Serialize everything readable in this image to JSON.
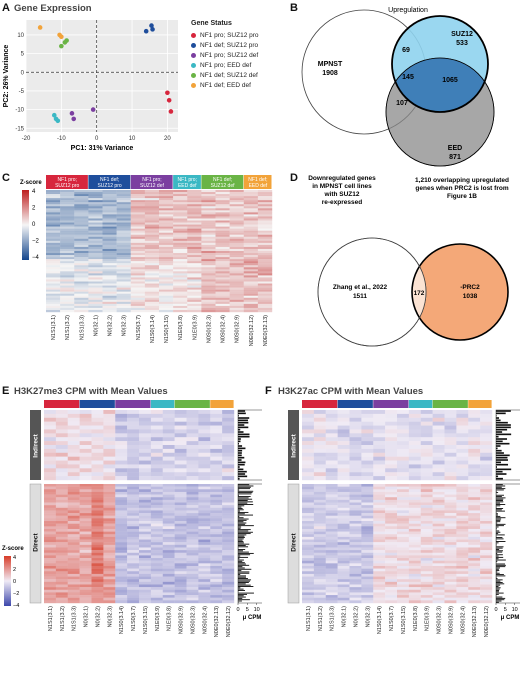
{
  "panels": {
    "A": {
      "label": "A",
      "title": "Gene Expression"
    },
    "B": {
      "label": "B"
    },
    "C": {
      "label": "C"
    },
    "D": {
      "label": "D"
    },
    "E": {
      "label": "E",
      "title": "H3K27me3 CPM with Mean Values"
    },
    "F": {
      "label": "F",
      "title": "H3K27ac CPM with Mean Values"
    }
  },
  "legend": {
    "title": "Gene Status",
    "items": [
      {
        "label": "NF1 pro; SUZ12 pro",
        "color": "#d7263d"
      },
      {
        "label": "NF1 def; SUZ12 pro",
        "color": "#1f4e9c"
      },
      {
        "label": "NF1 pro; SUZ12 def",
        "color": "#7b3fa0"
      },
      {
        "label": "NF1 pro; EED def",
        "color": "#3bb8c4"
      },
      {
        "label": "NF1 def; SUZ12 def",
        "color": "#6ab445"
      },
      {
        "label": "NF1 def; EED def",
        "color": "#f2a33a"
      }
    ]
  },
  "chart_data": [
    {
      "type": "scatter",
      "panel": "A",
      "title": "Gene Expression",
      "xlabel": "PC1: 31% Variance",
      "ylabel": "PC2: 26% Variance",
      "xlim": [
        -20,
        23
      ],
      "ylim": [
        -16,
        14
      ],
      "xticks": [
        -20,
        -10,
        0,
        10,
        20
      ],
      "yticks": [
        -15,
        -10,
        -5,
        0,
        5,
        10
      ],
      "series": [
        {
          "name": "NF1 pro; SUZ12 pro",
          "x": [
            20,
            20.5,
            21
          ],
          "y": [
            -5.5,
            -7.5,
            -10.5
          ]
        },
        {
          "name": "NF1 def; SUZ12 pro",
          "x": [
            14,
            15.5,
            15.8
          ],
          "y": [
            11,
            12.5,
            11.5
          ]
        },
        {
          "name": "NF1 pro; SUZ12 def",
          "x": [
            -7,
            -6.5,
            -1
          ],
          "y": [
            -11,
            -12.5,
            -10
          ]
        },
        {
          "name": "NF1 pro; EED def",
          "x": [
            -12,
            -11.5,
            -11
          ],
          "y": [
            -11.5,
            -12.5,
            -13
          ]
        },
        {
          "name": "NF1 def; SUZ12 def",
          "x": [
            -10,
            -9,
            -8.5
          ],
          "y": [
            7,
            8,
            8.5
          ]
        },
        {
          "name": "NF1 def; EED def",
          "x": [
            -16,
            -10.5,
            -10
          ],
          "y": [
            12,
            10,
            9.5
          ]
        }
      ]
    },
    {
      "type": "venn",
      "panel": "B",
      "title": "Upregulation",
      "sets": [
        {
          "name": "MPNST",
          "count": "1908"
        },
        {
          "name": "SUZ12",
          "count": "533"
        },
        {
          "name": "EED",
          "count": "871"
        }
      ],
      "overlaps": {
        "mpnst_suz12": "69",
        "all_three": "145",
        "suz12_eed": "1065",
        "mpnst_eed": "107"
      }
    },
    {
      "type": "heatmap",
      "panel": "C",
      "scale_title": "Z-score",
      "scale_ticks": [
        "4",
        "2",
        "0",
        "−2",
        "−4"
      ],
      "groups": [
        "NF1 pro; SUZ12 pro",
        "NF1 def; SUZ12 pro",
        "NF1 pro; SUZ12 def",
        "NF1 pro; EED def",
        "NF1 def; SUZ12 def",
        "NF1 def; EED def"
      ],
      "columns": [
        "N1S1(3.1)",
        "N1S1(3.2)",
        "N1S1(3.3)",
        "N0(32.1)",
        "N0(32.2)",
        "N0(32.3)",
        "N1S0(3.7)",
        "N1S0(3.14)",
        "N1S0(3.15)",
        "N1E0(3.8)",
        "N1E0(3.9)",
        "N0S0(32.3)",
        "N0S0(32.4)",
        "N0S0(32.9)",
        "N0E0(32.12)",
        "N0E0(32.13)"
      ]
    },
    {
      "type": "venn",
      "panel": "D",
      "left_caption": "Downregulated genes in MPNST cell lines with SUZ12 re-expressed",
      "right_caption": "1,210 overlapping upregulated genes when PRC2 is lost from Figure 1B",
      "sets": [
        {
          "name": "Zhang et al., 2022",
          "count": "1511"
        },
        {
          "name": "-PRC2",
          "count": "1038"
        }
      ],
      "overlaps": {
        "both": "172"
      }
    },
    {
      "type": "heatmap",
      "panel": "E",
      "title": "H3K27me3 CPM with Mean Values",
      "row_groups": [
        "Indirect",
        "Direct"
      ],
      "scale_title": "Z-score",
      "scale_ticks": [
        "4",
        "2",
        "0",
        "−2",
        "−4"
      ],
      "bar_axis": {
        "label": "μ CPM",
        "ticks": [
          "0",
          "5",
          "10",
          "15"
        ]
      },
      "columns": [
        "N1S1(3.1)",
        "N1S1(3.2)",
        "N1S1(3.3)",
        "N0(32.1)",
        "N0(32.2)",
        "N0(32.3)",
        "N1S0(3.14)",
        "N1S0(3.7)",
        "N1S0(3.15)",
        "N1E0(3.9)",
        "N1E0(3.8)",
        "N0S0(32.9)",
        "N0S0(32.3)",
        "N0S0(32.4)",
        "N0E0(32.13)",
        "N0E0(32.12)"
      ]
    },
    {
      "type": "heatmap",
      "panel": "F",
      "title": "H3K27ac CPM with Mean Values",
      "row_groups": [
        "Indirect",
        "Direct"
      ],
      "bar_axis": {
        "label": "μ CPM",
        "ticks": [
          "0",
          "5",
          "10",
          "15"
        ]
      },
      "columns": [
        "N1S1(3.1)",
        "N1S1(3.2)",
        "N1S1(3.3)",
        "N0(32.1)",
        "N0(32.2)",
        "N0(32.3)",
        "N1S0(3.14)",
        "N1S0(3.7)",
        "N1S0(3.15)",
        "N1E0(3.8)",
        "N1E0(3.9)",
        "N0S0(32.3)",
        "N0S0(32.9)",
        "N0S0(32.4)",
        "N0E0(32.13)",
        "N0E0(32.12)"
      ]
    }
  ]
}
